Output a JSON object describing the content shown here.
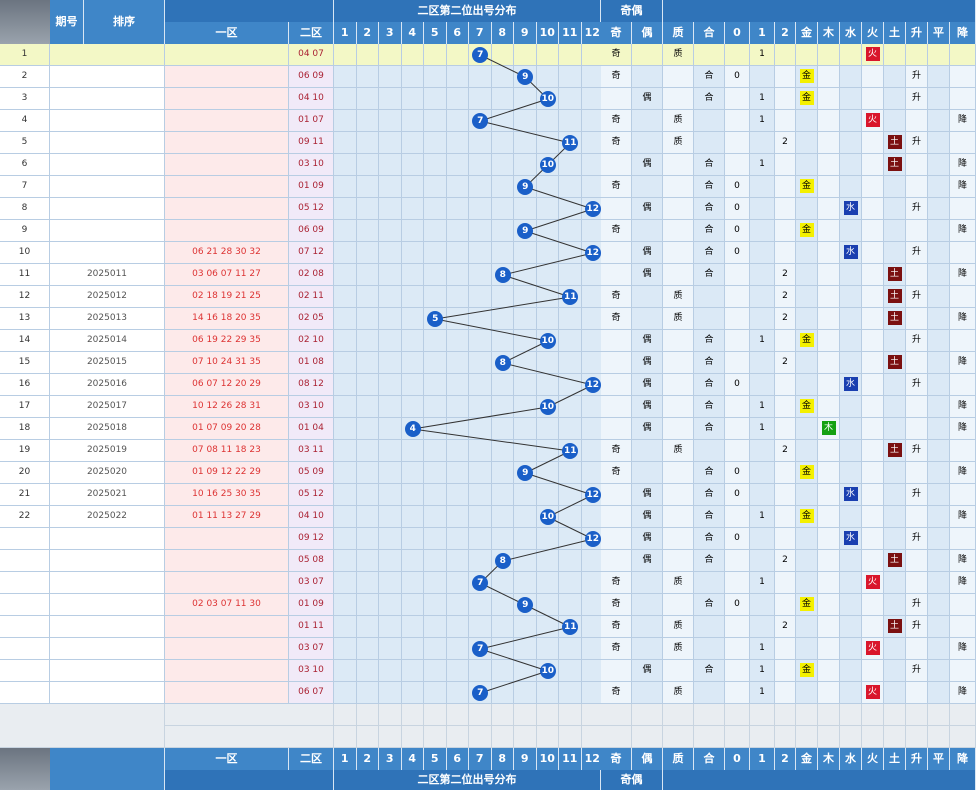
{
  "header": {
    "period_label": "期号",
    "sort_label": "排序",
    "zone1_label": "一区",
    "zone2_label": "二区",
    "distribution_title": "二区第二位出号分布",
    "parity_title": "奇偶",
    "numbers": [
      "1",
      "2",
      "3",
      "4",
      "5",
      "6",
      "7",
      "8",
      "9",
      "10",
      "11",
      "12"
    ],
    "attr_labels": [
      "奇",
      "偶",
      "质",
      "合",
      "0",
      "1",
      "2",
      "金",
      "木",
      "水",
      "火",
      "土",
      "升",
      "平",
      "降"
    ]
  },
  "chart_data": {
    "type": "table",
    "title": "二区第二位出号分布",
    "categories": [
      "1",
      "2",
      "3",
      "4",
      "5",
      "6",
      "7",
      "8",
      "9",
      "10",
      "11",
      "12"
    ],
    "rows": [
      {
        "no": "1",
        "period": "",
        "zone1": "",
        "zone2": "04 07",
        "value": 7,
        "parity": "奇",
        "prime": "质",
        "comp": "",
        "mod": "1",
        "element": "火",
        "trend": ""
      },
      {
        "no": "2",
        "period": "",
        "zone1": "",
        "zone2": "06 09",
        "value": 9,
        "parity": "奇",
        "prime": "",
        "comp": "合",
        "mod": "0",
        "element": "金",
        "trend": "升"
      },
      {
        "no": "3",
        "period": "",
        "zone1": "",
        "zone2": "04 10",
        "value": 10,
        "parity": "偶",
        "prime": "",
        "comp": "合",
        "mod": "1",
        "element": "金",
        "trend": "升"
      },
      {
        "no": "4",
        "period": "",
        "zone1": "",
        "zone2": "01 07",
        "value": 7,
        "parity": "奇",
        "prime": "质",
        "comp": "",
        "mod": "1",
        "element": "火",
        "trend": "降"
      },
      {
        "no": "5",
        "period": "",
        "zone1": "",
        "zone2": "09 11",
        "value": 11,
        "parity": "奇",
        "prime": "质",
        "comp": "",
        "mod": "2",
        "element": "土",
        "trend": "升"
      },
      {
        "no": "6",
        "period": "",
        "zone1": "",
        "zone2": "03 10",
        "value": 10,
        "parity": "偶",
        "prime": "",
        "comp": "合",
        "mod": "1",
        "element": "土",
        "trend": "降"
      },
      {
        "no": "7",
        "period": "",
        "zone1": "",
        "zone2": "01 09",
        "value": 9,
        "parity": "奇",
        "prime": "",
        "comp": "合",
        "mod": "0",
        "element": "金",
        "trend": "降"
      },
      {
        "no": "8",
        "period": "",
        "zone1": "",
        "zone2": "05 12",
        "value": 12,
        "parity": "偶",
        "prime": "",
        "comp": "合",
        "mod": "0",
        "element": "水",
        "trend": "升"
      },
      {
        "no": "9",
        "period": "",
        "zone1": "",
        "zone2": "06 09",
        "value": 9,
        "parity": "奇",
        "prime": "",
        "comp": "合",
        "mod": "0",
        "element": "金",
        "trend": "降"
      },
      {
        "no": "10",
        "period": "",
        "zone1": "06 21 28 30 32",
        "zone2": "07 12",
        "value": 12,
        "parity": "偶",
        "prime": "",
        "comp": "合",
        "mod": "0",
        "element": "水",
        "trend": "升"
      },
      {
        "no": "11",
        "period": "2025011",
        "zone1": "03 06 07 11 27",
        "zone2": "02 08",
        "value": 8,
        "parity": "偶",
        "prime": "",
        "comp": "合",
        "mod": "2",
        "element": "土",
        "trend": "降"
      },
      {
        "no": "12",
        "period": "2025012",
        "zone1": "02 18 19 21 25",
        "zone2": "02 11",
        "value": 11,
        "parity": "奇",
        "prime": "质",
        "comp": "",
        "mod": "2",
        "element": "土",
        "trend": "升"
      },
      {
        "no": "13",
        "period": "2025013",
        "zone1": "14 16 18 20 35",
        "zone2": "02 05",
        "value": 5,
        "parity": "奇",
        "prime": "质",
        "comp": "",
        "mod": "2",
        "element": "土",
        "trend": "降"
      },
      {
        "no": "14",
        "period": "2025014",
        "zone1": "06 19 22 29 35",
        "zone2": "02 10",
        "value": 10,
        "parity": "偶",
        "prime": "",
        "comp": "合",
        "mod": "1",
        "element": "金",
        "trend": "升"
      },
      {
        "no": "15",
        "period": "2025015",
        "zone1": "07 10 24 31 35",
        "zone2": "01 08",
        "value": 8,
        "parity": "偶",
        "prime": "",
        "comp": "合",
        "mod": "2",
        "element": "土",
        "trend": "降"
      },
      {
        "no": "16",
        "period": "2025016",
        "zone1": "06 07 12 20 29",
        "zone2": "08 12",
        "value": 12,
        "parity": "偶",
        "prime": "",
        "comp": "合",
        "mod": "0",
        "element": "水",
        "trend": "升"
      },
      {
        "no": "17",
        "period": "2025017",
        "zone1": "10 12 26 28 31",
        "zone2": "03 10",
        "value": 10,
        "parity": "偶",
        "prime": "",
        "comp": "合",
        "mod": "1",
        "element": "金",
        "trend": "降"
      },
      {
        "no": "18",
        "period": "2025018",
        "zone1": "01 07 09 20 28",
        "zone2": "01 04",
        "value": 4,
        "parity": "偶",
        "prime": "",
        "comp": "合",
        "mod": "1",
        "element": "木",
        "trend": "降"
      },
      {
        "no": "19",
        "period": "2025019",
        "zone1": "07 08 11 18 23",
        "zone2": "03 11",
        "value": 11,
        "parity": "奇",
        "prime": "质",
        "comp": "",
        "mod": "2",
        "element": "土",
        "trend": "升"
      },
      {
        "no": "20",
        "period": "2025020",
        "zone1": "01 09 12 22 29",
        "zone2": "05 09",
        "value": 9,
        "parity": "奇",
        "prime": "",
        "comp": "合",
        "mod": "0",
        "element": "金",
        "trend": "降"
      },
      {
        "no": "21",
        "period": "2025021",
        "zone1": "10 16 25 30 35",
        "zone2": "05 12",
        "value": 12,
        "parity": "偶",
        "prime": "",
        "comp": "合",
        "mod": "0",
        "element": "水",
        "trend": "升"
      },
      {
        "no": "22",
        "period": "2025022",
        "zone1": "01 11 13 27 29",
        "zone2": "04 10",
        "value": 10,
        "parity": "偶",
        "prime": "",
        "comp": "合",
        "mod": "1",
        "element": "金",
        "trend": "降"
      },
      {
        "no": "",
        "period": "",
        "zone1": "",
        "zone2": "09 12",
        "value": 12,
        "parity": "偶",
        "prime": "",
        "comp": "合",
        "mod": "0",
        "element": "水",
        "trend": "升"
      },
      {
        "no": "",
        "period": "",
        "zone1": "",
        "zone2": "05 08",
        "value": 8,
        "parity": "偶",
        "prime": "",
        "comp": "合",
        "mod": "2",
        "element": "土",
        "trend": "降"
      },
      {
        "no": "",
        "period": "",
        "zone1": "",
        "zone2": "03 07",
        "value": 7,
        "parity": "奇",
        "prime": "质",
        "comp": "",
        "mod": "1",
        "element": "火",
        "trend": "降"
      },
      {
        "no": "",
        "period": "",
        "zone1": "02 03 07 11 30",
        "zone2": "01 09",
        "value": 9,
        "parity": "奇",
        "prime": "",
        "comp": "合",
        "mod": "0",
        "element": "金",
        "trend": "升"
      },
      {
        "no": "",
        "period": "",
        "zone1": "",
        "zone2": "01 11",
        "value": 11,
        "parity": "奇",
        "prime": "质",
        "comp": "",
        "mod": "2",
        "element": "土",
        "trend": "升"
      },
      {
        "no": "",
        "period": "",
        "zone1": "",
        "zone2": "03 07",
        "value": 7,
        "parity": "奇",
        "prime": "质",
        "comp": "",
        "mod": "1",
        "element": "火",
        "trend": "降"
      },
      {
        "no": "",
        "period": "",
        "zone1": "",
        "zone2": "03 10",
        "value": 10,
        "parity": "偶",
        "prime": "",
        "comp": "合",
        "mod": "1",
        "element": "金",
        "trend": "升"
      },
      {
        "no": "",
        "period": "",
        "zone1": "",
        "zone2": "06 07",
        "value": 7,
        "parity": "奇",
        "prime": "质",
        "comp": "",
        "mod": "1",
        "element": "火",
        "trend": "降"
      }
    ]
  },
  "colors": {
    "ball": "#1a5fc8",
    "line": "#333333",
    "header": "#2f73b8"
  }
}
